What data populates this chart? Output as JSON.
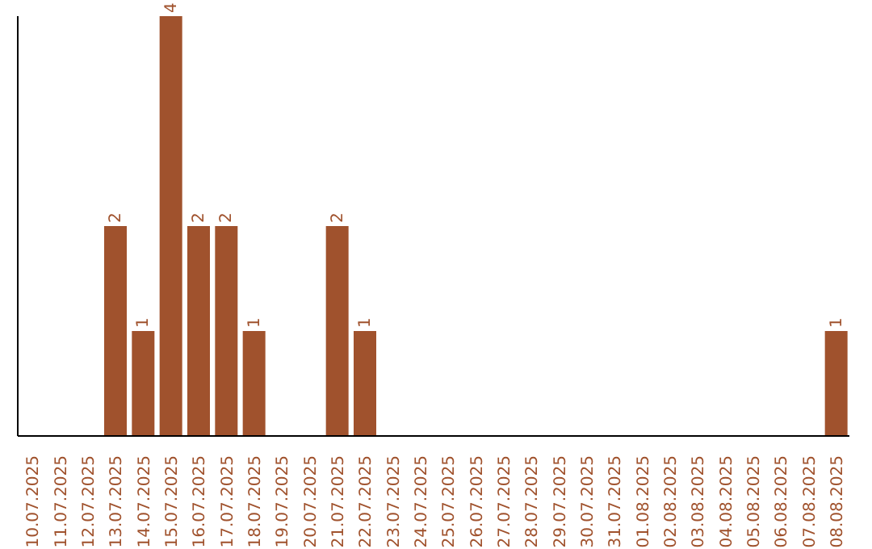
{
  "chart_data": {
    "type": "bar",
    "categories": [
      "10.07.2025",
      "11.07.2025",
      "12.07.2025",
      "13.07.2025",
      "14.07.2025",
      "15.07.2025",
      "16.07.2025",
      "17.07.2025",
      "18.07.2025",
      "19.07.2025",
      "20.07.2025",
      "21.07.2025",
      "22.07.2025",
      "23.07.2025",
      "24.07.2025",
      "25.07.2025",
      "26.07.2025",
      "27.07.2025",
      "28.07.2025",
      "29.07.2025",
      "30.07.2025",
      "31.07.2025",
      "01.08.2025",
      "02.08.2025",
      "03.08.2025",
      "04.08.2025",
      "05.08.2025",
      "06.08.2025",
      "07.08.2025",
      "08.08.2025"
    ],
    "values": [
      0,
      0,
      0,
      2,
      1,
      4,
      2,
      2,
      1,
      0,
      0,
      2,
      1,
      0,
      0,
      0,
      0,
      0,
      0,
      0,
      0,
      0,
      0,
      0,
      0,
      0,
      0,
      0,
      0,
      1
    ],
    "value_labels": [
      null,
      null,
      null,
      "2",
      "1",
      "4",
      "2",
      "2",
      "1",
      null,
      null,
      "2",
      "1",
      null,
      null,
      null,
      null,
      null,
      null,
      null,
      null,
      null,
      null,
      null,
      null,
      null,
      null,
      null,
      null,
      "1"
    ],
    "color": "#a0522d"
  }
}
